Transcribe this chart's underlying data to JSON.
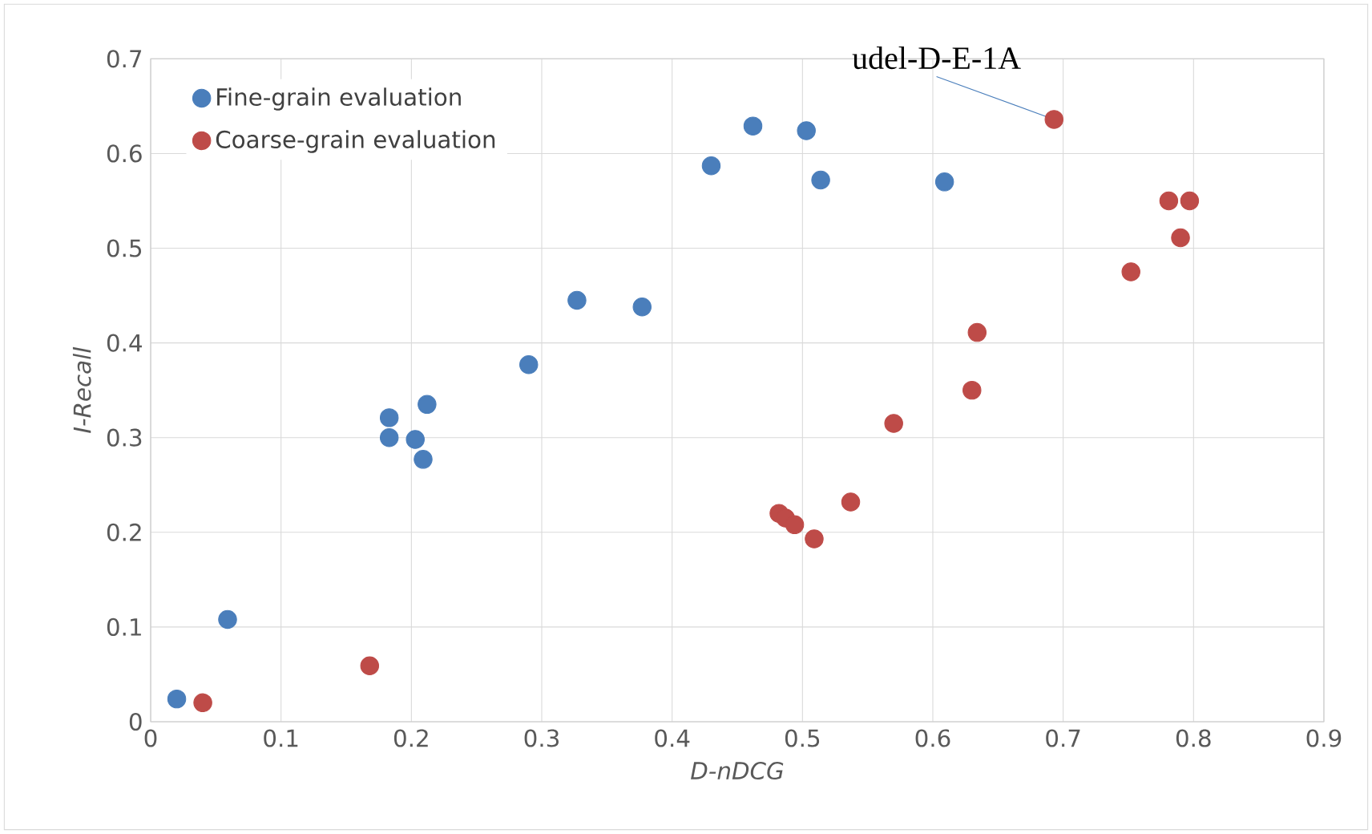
{
  "chart_data": {
    "type": "scatter",
    "xlabel": "D-nDCG",
    "ylabel": "I-Recall",
    "xlim": [
      0,
      0.9
    ],
    "ylim": [
      0,
      0.7
    ],
    "xticks": [
      0,
      0.1,
      0.2,
      0.3,
      0.4,
      0.5,
      0.6,
      0.7,
      0.8,
      0.9
    ],
    "yticks": [
      0,
      0.1,
      0.2,
      0.3,
      0.4,
      0.5,
      0.6,
      0.7
    ],
    "grid": true,
    "legend": "top left",
    "marker": "circle",
    "annotations": [
      {
        "text": "udel-D-E-1A",
        "x": 0.693,
        "y": 0.636
      }
    ],
    "series": [
      {
        "name": "Fine-grain evaluation",
        "color": "#4a7ebb",
        "x": [
          0.02,
          0.059,
          0.183,
          0.183,
          0.203,
          0.209,
          0.212,
          0.29,
          0.327,
          0.377,
          0.43,
          0.462,
          0.503,
          0.514,
          0.609
        ],
        "values": [
          0.024,
          0.108,
          0.321,
          0.3,
          0.298,
          0.277,
          0.335,
          0.377,
          0.445,
          0.438,
          0.587,
          0.629,
          0.624,
          0.572,
          0.57
        ]
      },
      {
        "name": "Coarse-grain evaluation",
        "color": "#be4b48",
        "x": [
          0.04,
          0.168,
          0.482,
          0.487,
          0.494,
          0.509,
          0.537,
          0.57,
          0.63,
          0.634,
          0.693,
          0.752,
          0.781,
          0.79,
          0.797
        ],
        "values": [
          0.02,
          0.059,
          0.22,
          0.215,
          0.208,
          0.193,
          0.232,
          0.315,
          0.35,
          0.411,
          0.636,
          0.475,
          0.55,
          0.511,
          0.55
        ]
      }
    ]
  }
}
